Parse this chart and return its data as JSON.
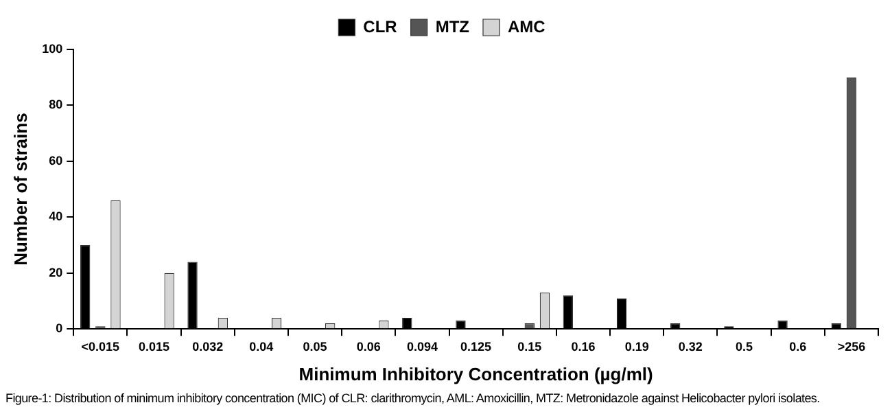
{
  "chart_data": {
    "type": "bar",
    "ylabel": "Number of strains",
    "xlabel": "Minimum Inhibitory Concentration (µg/ml)",
    "categories": [
      "<0.015",
      "0.015",
      "0.032",
      "0.04",
      "0.05",
      "0.06",
      "0.094",
      "0.125",
      "0.15",
      "0.16",
      "0.19",
      "0.32",
      "0.5",
      "0.6",
      ">256"
    ],
    "series": [
      {
        "name": "CLR",
        "color": "#000000",
        "values": [
          30,
          0,
          24,
          0,
          0,
          0,
          4,
          3,
          0,
          12,
          11,
          2,
          1,
          3,
          2
        ]
      },
      {
        "name": "MTZ",
        "color": "#555555",
        "values": [
          1,
          0,
          0,
          0,
          0,
          0,
          0,
          0,
          2,
          0,
          0,
          0,
          0,
          0,
          90
        ]
      },
      {
        "name": "AMC",
        "color": "#d4d4d4",
        "values": [
          46,
          20,
          4,
          4,
          2,
          3,
          0,
          0,
          13,
          0,
          0,
          0,
          0,
          0,
          0
        ]
      }
    ],
    "ylim": [
      0,
      100
    ],
    "yticks": [
      0,
      20,
      40,
      60,
      80,
      100
    ],
    "grid": false,
    "legend": "top",
    "annotations": [
      "Figure-1: Distribution of minimum inhibitory concentration (MIC) of CLR: clarithromycin, AML: Amoxicillin, MTZ: Metronidazole against Helicobacter pylori isolates."
    ]
  }
}
